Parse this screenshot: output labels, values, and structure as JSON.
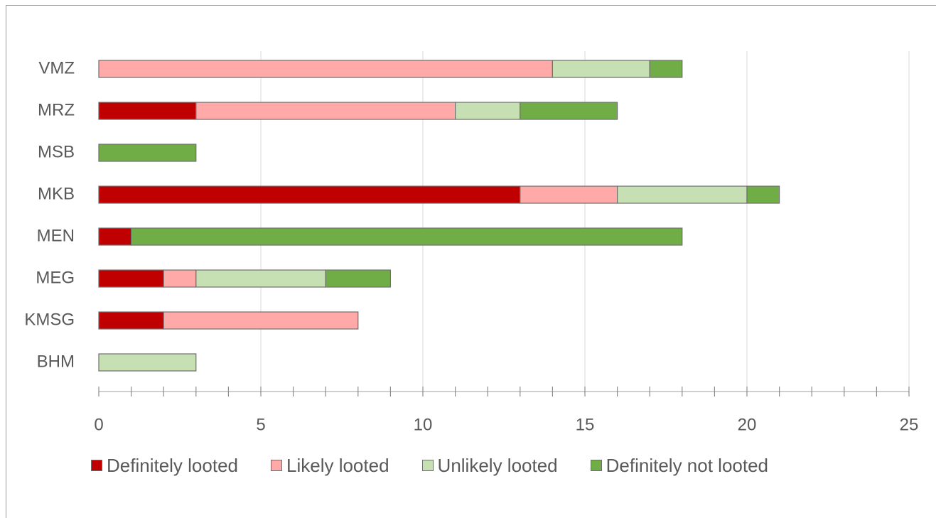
{
  "chart_data": {
    "type": "bar",
    "orientation": "horizontal",
    "stacked": true,
    "title": "",
    "xlabel": "",
    "ylabel": "",
    "categories": [
      "VMZ",
      "MRZ",
      "MSB",
      "MKB",
      "MEN",
      "MEG",
      "KMSG",
      "BHM"
    ],
    "series": [
      {
        "name": "Definitely looted",
        "color": "#c00000",
        "values": [
          0,
          3,
          0,
          13,
          1,
          2,
          2,
          0
        ]
      },
      {
        "name": "Likely looted",
        "color": "#ffa9a9",
        "values": [
          14,
          8,
          0,
          3,
          0,
          1,
          6,
          0
        ]
      },
      {
        "name": "Unlikely looted",
        "color": "#c6e0b4",
        "values": [
          3,
          2,
          0,
          4,
          0,
          4,
          0,
          3
        ]
      },
      {
        "name": "Definitely not looted",
        "color": "#70ad47",
        "values": [
          1,
          3,
          3,
          1,
          17,
          2,
          0,
          0
        ]
      }
    ],
    "xlim": [
      0,
      25
    ],
    "xticks": [
      "0",
      "5",
      "10",
      "15",
      "20",
      "25"
    ],
    "minor_tick_step": 1,
    "grid": "vertical",
    "legend": "bottom"
  }
}
